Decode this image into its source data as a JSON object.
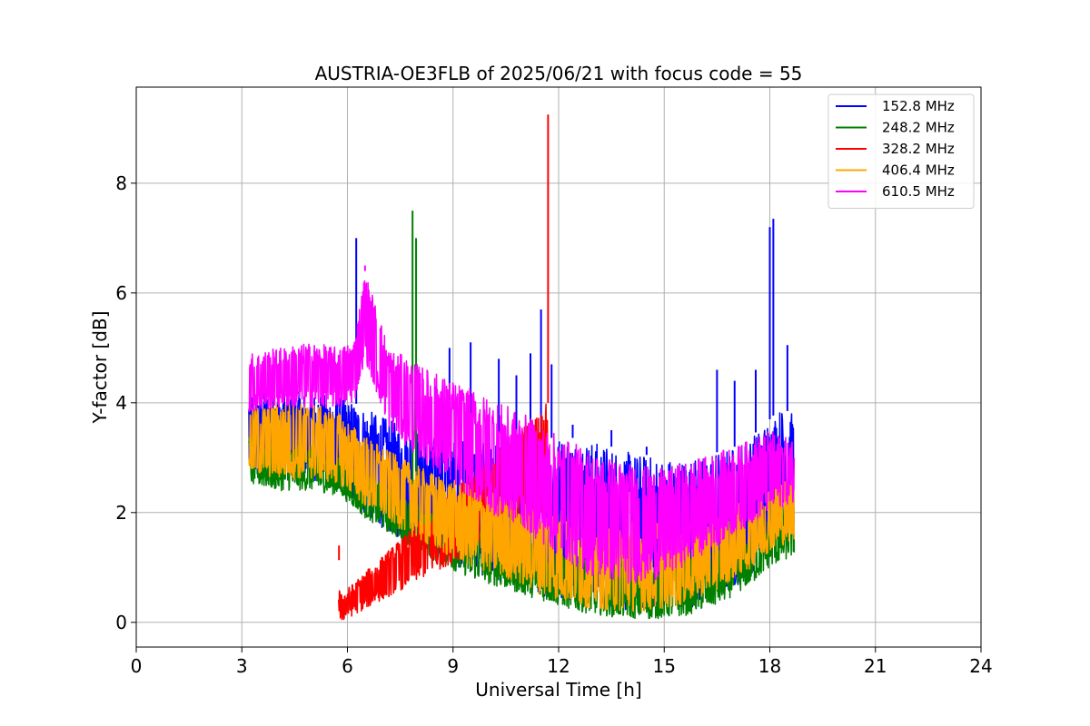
{
  "chart_data": {
    "type": "line",
    "title": "AUSTRIA-OE3FLB of 2025/06/21 with focus code = 55",
    "xlabel": "Universal Time [h]",
    "ylabel": "Y-factor [dB]",
    "xlim": [
      0,
      24
    ],
    "ylim": [
      -0.45,
      9.75
    ],
    "xticks": [
      0,
      3,
      6,
      9,
      12,
      15,
      18,
      21,
      24
    ],
    "xtick_labels": [
      "0",
      "3",
      "6",
      "9",
      "12",
      "15",
      "18",
      "21",
      "24"
    ],
    "yticks": [
      0,
      2,
      4,
      6,
      8
    ],
    "ytick_labels": [
      "0",
      "2",
      "4",
      "6",
      "8"
    ],
    "grid": true,
    "legend_position": "top-right",
    "series": [
      {
        "name": "152.8 MHz",
        "color": "#0000ff",
        "x": [
          3.2,
          4.0,
          5.0,
          5.8,
          6.2,
          6.8,
          7.5,
          8.5,
          9.5,
          10.5,
          11.0,
          11.5,
          12.0,
          13.0,
          14.0,
          15.0,
          16.0,
          16.5,
          17.0,
          17.5,
          18.0,
          18.3,
          18.7
        ],
        "band_low": [
          2.6,
          2.6,
          2.6,
          2.4,
          2.1,
          1.8,
          1.5,
          1.2,
          0.9,
          0.7,
          0.6,
          0.5,
          0.4,
          0.3,
          0.2,
          0.2,
          0.3,
          0.4,
          0.6,
          0.9,
          1.3,
          1.6,
          1.8
        ],
        "band_high": [
          4.2,
          4.2,
          4.2,
          4.1,
          4.0,
          3.8,
          3.6,
          3.4,
          3.3,
          3.2,
          3.2,
          3.3,
          3.4,
          3.3,
          3.1,
          3.0,
          3.0,
          3.1,
          3.2,
          3.4,
          3.7,
          3.9,
          3.8
        ],
        "spikes": [
          [
            6.25,
            7.0
          ],
          [
            7.3,
            4.2
          ],
          [
            8.3,
            4.0
          ],
          [
            8.5,
            4.3
          ],
          [
            8.9,
            5.0
          ],
          [
            9.5,
            5.1
          ],
          [
            10.3,
            4.8
          ],
          [
            10.8,
            4.5
          ],
          [
            11.2,
            4.9
          ],
          [
            11.5,
            5.7
          ],
          [
            11.8,
            4.7
          ],
          [
            12.4,
            3.6
          ],
          [
            13.5,
            3.5
          ],
          [
            14.5,
            3.2
          ],
          [
            16.5,
            4.6
          ],
          [
            17.0,
            4.4
          ],
          [
            17.6,
            4.6
          ],
          [
            18.0,
            7.2
          ],
          [
            18.1,
            7.35
          ],
          [
            18.5,
            5.05
          ]
        ]
      },
      {
        "name": "248.2 MHz",
        "color": "#008000",
        "x": [
          3.2,
          4.0,
          5.0,
          5.8,
          6.5,
          7.5,
          8.5,
          9.5,
          10.5,
          11.5,
          12.5,
          13.5,
          14.5,
          15.5,
          16.5,
          17.5,
          18.0,
          18.7
        ],
        "band_low": [
          2.5,
          2.4,
          2.4,
          2.3,
          1.9,
          1.5,
          1.1,
          0.8,
          0.6,
          0.4,
          0.2,
          0.1,
          0.05,
          0.1,
          0.3,
          0.7,
          1.0,
          1.2
        ],
        "band_high": [
          3.4,
          3.3,
          3.2,
          3.0,
          2.7,
          2.3,
          2.0,
          1.8,
          1.6,
          1.4,
          1.2,
          1.1,
          1.0,
          1.1,
          1.3,
          1.6,
          1.9,
          2.4
        ],
        "spikes": [
          [
            7.85,
            7.5
          ],
          [
            7.95,
            7.0
          ]
        ]
      },
      {
        "name": "328.2 MHz",
        "color": "#ff0000",
        "x": [
          5.75,
          5.78,
          5.8,
          11.68,
          11.7
        ],
        "band_low": [
          0.0,
          0.0,
          0.0,
          2.0,
          2.0
        ],
        "band_high": [
          1.4,
          0.6,
          0.5,
          4.0,
          4.0
        ],
        "spikes": [
          [
            11.7,
            9.25
          ],
          [
            5.76,
            1.4
          ]
        ]
      },
      {
        "name": "406.4 MHz",
        "color": "#ffa500",
        "x": [
          3.2,
          4.0,
          5.0,
          5.8,
          6.5,
          7.5,
          8.5,
          9.5,
          10.5,
          11.5,
          12.5,
          13.5,
          14.5,
          15.5,
          16.5,
          17.5,
          18.0,
          18.7
        ],
        "band_low": [
          2.7,
          2.6,
          2.6,
          2.5,
          2.1,
          1.7,
          1.3,
          1.0,
          0.8,
          0.5,
          0.3,
          0.2,
          0.2,
          0.3,
          0.6,
          1.0,
          1.3,
          1.5
        ],
        "band_high": [
          3.9,
          4.0,
          4.0,
          3.8,
          3.4,
          3.0,
          2.7,
          2.5,
          2.3,
          2.2,
          2.0,
          1.9,
          1.9,
          1.9,
          2.0,
          2.3,
          2.5,
          2.7
        ],
        "spikes": []
      },
      {
        "name": "610.5 MHz",
        "color": "#ff00ff",
        "x": [
          3.2,
          4.0,
          5.0,
          5.8,
          6.2,
          6.5,
          6.8,
          7.2,
          8.0,
          9.0,
          10.0,
          11.0,
          12.0,
          13.0,
          14.0,
          15.0,
          16.0,
          17.0,
          18.0,
          18.7
        ],
        "band_low": [
          3.8,
          3.9,
          3.9,
          3.9,
          4.0,
          4.8,
          4.2,
          3.5,
          3.0,
          2.5,
          2.0,
          1.7,
          1.2,
          0.8,
          0.7,
          0.8,
          1.2,
          1.6,
          2.0,
          2.2
        ],
        "band_high": [
          4.9,
          5.0,
          5.1,
          5.0,
          5.2,
          6.4,
          5.8,
          5.0,
          4.7,
          4.4,
          4.1,
          3.8,
          3.4,
          3.1,
          2.9,
          2.8,
          3.0,
          3.2,
          3.5,
          3.3
        ],
        "spikes": [
          [
            6.5,
            6.5
          ]
        ]
      }
    ]
  }
}
